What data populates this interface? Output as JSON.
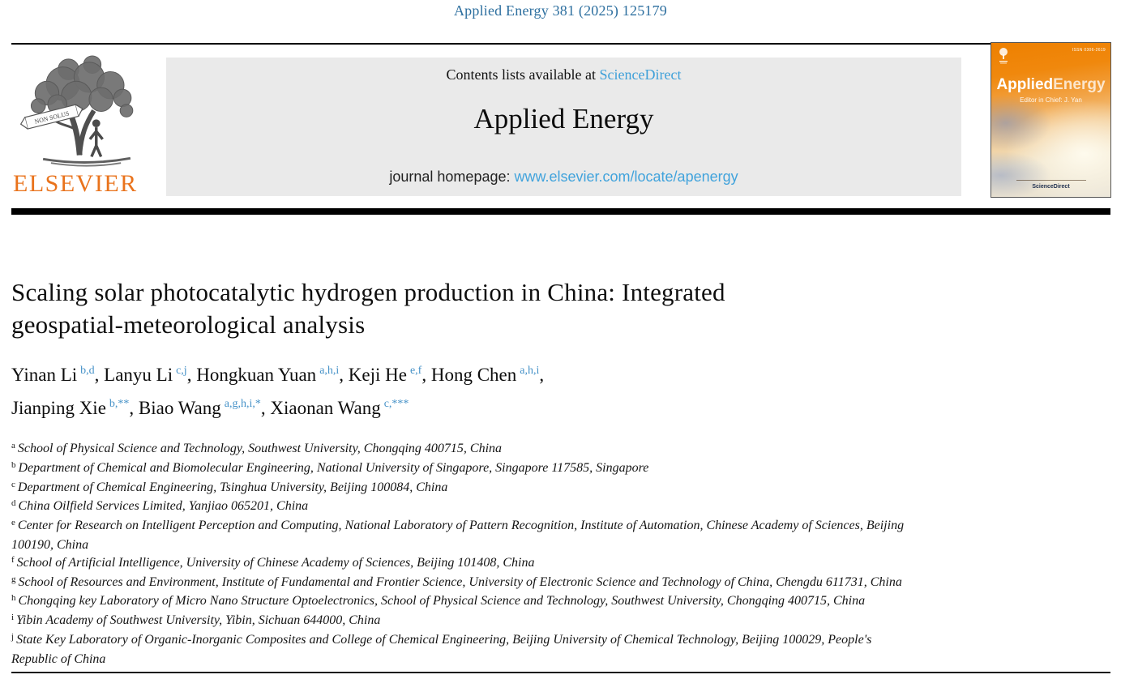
{
  "page": {
    "citation": "Applied Energy 381 (2025) 125179"
  },
  "header": {
    "contents_prefix": "Contents lists available at ",
    "contents_link": "ScienceDirect",
    "journal_title": "Applied Energy",
    "homepage_prefix": "journal homepage: ",
    "homepage_link": "www.elsevier.com/locate/apenergy",
    "elsevier_wordmark": "ELSEVIER",
    "elsevier_motto": "NON SOLUS",
    "cover": {
      "issn": "ISSN 0306-2619",
      "title_bold": "Applied",
      "title_light": "Energy",
      "editor": "Editor in Chief: J. Yan",
      "footer": "ScienceDirect"
    }
  },
  "article": {
    "title_full": "Scaling solar photocatalytic hydrogen production in China: Integrated geospatial-meteorological analysis",
    "title_lines": [
      "Scaling solar photocatalytic hydrogen production in China: Integrated",
      "geospatial-meteorological analysis"
    ],
    "author_lines": [
      [
        {
          "name": "Yinan Li",
          "sup": "b,d",
          "trail": ", "
        },
        {
          "name": "Lanyu Li",
          "sup": "c,j",
          "trail": ", "
        },
        {
          "name": "Hongkuan Yuan",
          "sup": "a,h,i",
          "trail": ", "
        },
        {
          "name": "Keji He",
          "sup": "e,f",
          "trail": ", "
        },
        {
          "name": "Hong Chen",
          "sup": "a,h,i",
          "trail": ","
        }
      ],
      [
        {
          "name": "Jianping Xie",
          "sup": "b,**",
          "trail": ", "
        },
        {
          "name": "Biao Wang",
          "sup": "a,g,h,i,*",
          "trail": ", "
        },
        {
          "name": "Xiaonan Wang",
          "sup": "c,***",
          "trail": ""
        }
      ]
    ],
    "affiliations": [
      {
        "label": "a",
        "lines": [
          "School of Physical Science and Technology, Southwest University, Chongqing 400715, China"
        ]
      },
      {
        "label": "b",
        "lines": [
          "Department of Chemical and Biomolecular Engineering, National University of Singapore, Singapore 117585, Singapore"
        ]
      },
      {
        "label": "c",
        "lines": [
          "Department of Chemical Engineering, Tsinghua University, Beijing 100084, China"
        ]
      },
      {
        "label": "d",
        "lines": [
          "China Oilfield Services Limited, Yanjiao 065201, China"
        ]
      },
      {
        "label": "e",
        "lines": [
          "Center for Research on Intelligent Perception and Computing, National Laboratory of Pattern Recognition, Institute of Automation, Chinese Academy of Sciences, Beijing",
          "100190, China"
        ]
      },
      {
        "label": "f",
        "lines": [
          "School of Artificial Intelligence, University of Chinese Academy of Sciences, Beijing 101408, China"
        ]
      },
      {
        "label": "g",
        "lines": [
          "School of Resources and Environment, Institute of Fundamental and Frontier Science, University of Electronic Science and Technology of China, Chengdu 611731, China"
        ]
      },
      {
        "label": "h",
        "lines": [
          "Chongqing key Laboratory of Micro Nano Structure Optoelectronics, School of Physical Science and Technology, Southwest University, Chongqing 400715, China"
        ]
      },
      {
        "label": "i",
        "lines": [
          "Yibin Academy of Southwest University, Yibin, Sichuan 644000, China"
        ]
      },
      {
        "label": "j",
        "lines": [
          "State Key Laboratory of Organic-Inorganic Composites and College of Chemical Engineering, Beijing University of Chemical Technology, Beijing 100029, People's",
          "Republic of China"
        ]
      }
    ]
  },
  "colors": {
    "citation_blue": "#2d6f9f",
    "link_blue": "#3ea0d9",
    "homepage_link_blue": "#41a3dc",
    "superscript_blue": "#4692c8",
    "elsevier_orange": "#e9731c",
    "cover_orange": "#ee8000",
    "header_box_gray": "#eaeaea",
    "rule_black": "#000000"
  }
}
